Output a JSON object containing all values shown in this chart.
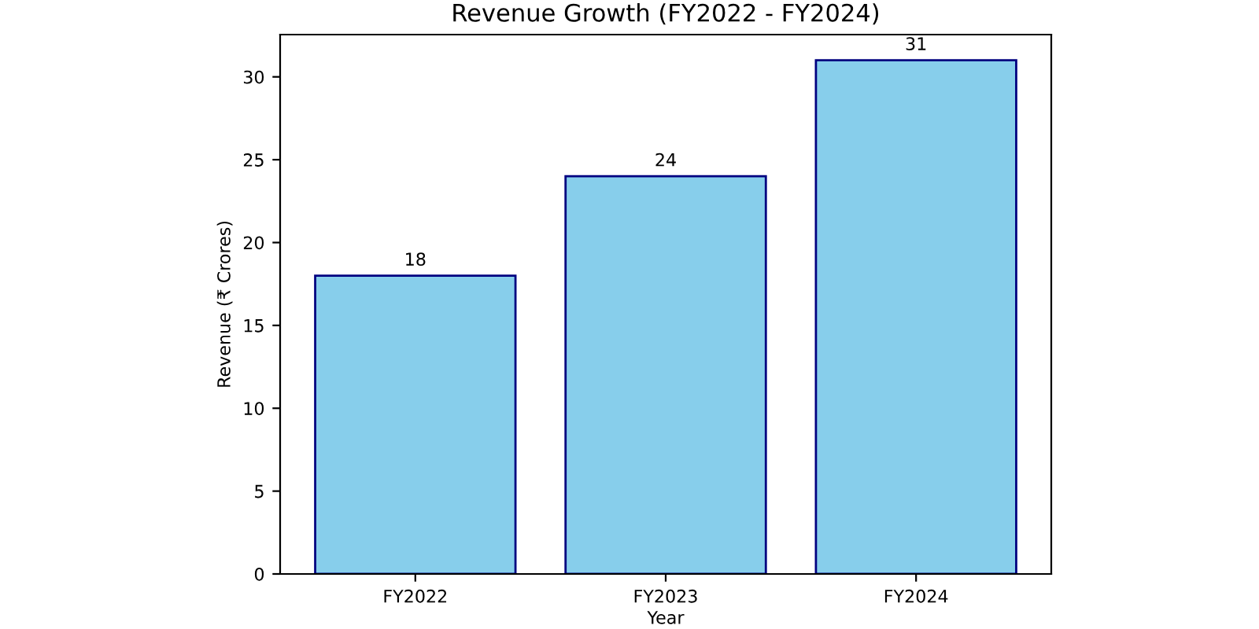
{
  "chart_data": {
    "type": "bar",
    "title": "Revenue Growth (FY2022 - FY2024)",
    "xlabel": "Year",
    "ylabel": "Revenue (₹ Crores)",
    "categories": [
      "FY2022",
      "FY2023",
      "FY2024"
    ],
    "values": [
      18,
      24,
      31
    ],
    "color": "#87ceeb",
    "ylim": [
      0,
      32.55
    ],
    "yticks": [
      0,
      5,
      10,
      15,
      20,
      25,
      30
    ],
    "data_labels": true,
    "grid": false
  }
}
